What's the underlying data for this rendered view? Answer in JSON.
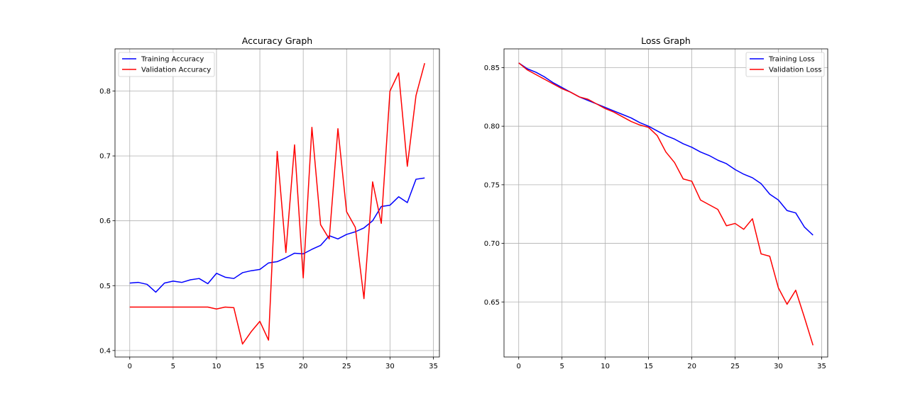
{
  "chart_data": [
    {
      "type": "line",
      "title": "Accuracy Graph",
      "xlabel": "",
      "ylabel": "",
      "xlim": [
        -1.7,
        35.7
      ],
      "ylim": [
        0.39,
        0.865
      ],
      "xticks": [
        0,
        5,
        10,
        15,
        20,
        25,
        30,
        35
      ],
      "xtick_labels": [
        "0",
        "5",
        "10",
        "15",
        "20",
        "25",
        "30",
        "35"
      ],
      "yticks": [
        0.4,
        0.5,
        0.6,
        0.7,
        0.8
      ],
      "ytick_labels": [
        "0.4",
        "0.5",
        "0.6",
        "0.7",
        "0.8"
      ],
      "grid": true,
      "legend_position": "upper-left",
      "x": [
        0,
        1,
        2,
        3,
        4,
        5,
        6,
        7,
        8,
        9,
        10,
        11,
        12,
        13,
        14,
        15,
        16,
        17,
        18,
        19,
        20,
        21,
        22,
        23,
        24,
        25,
        26,
        27,
        28,
        29,
        30,
        31,
        32,
        33,
        34
      ],
      "series": [
        {
          "name": "Training Accuracy",
          "color": "#0000ff",
          "values": [
            0.504,
            0.505,
            0.502,
            0.49,
            0.504,
            0.507,
            0.505,
            0.509,
            0.511,
            0.503,
            0.519,
            0.513,
            0.511,
            0.52,
            0.523,
            0.525,
            0.535,
            0.537,
            0.543,
            0.55,
            0.549,
            0.556,
            0.562,
            0.577,
            0.572,
            0.579,
            0.583,
            0.589,
            0.6,
            0.622,
            0.624,
            0.637,
            0.628,
            0.664,
            0.666
          ]
        },
        {
          "name": "Validation Accuracy",
          "color": "#ff0000",
          "values": [
            0.467,
            0.467,
            0.467,
            0.467,
            0.467,
            0.467,
            0.467,
            0.467,
            0.467,
            0.467,
            0.464,
            0.467,
            0.466,
            0.41,
            0.429,
            0.445,
            0.416,
            0.707,
            0.551,
            0.717,
            0.512,
            0.744,
            0.594,
            0.572,
            0.742,
            0.614,
            0.59,
            0.48,
            0.66,
            0.596,
            0.8,
            0.828,
            0.684,
            0.793,
            0.843
          ]
        }
      ]
    },
    {
      "type": "line",
      "title": "Loss Graph",
      "xlabel": "",
      "ylabel": "",
      "xlim": [
        -1.7,
        35.7
      ],
      "ylim": [
        0.603,
        0.866
      ],
      "xticks": [
        0,
        5,
        10,
        15,
        20,
        25,
        30,
        35
      ],
      "xtick_labels": [
        "0",
        "5",
        "10",
        "15",
        "20",
        "25",
        "30",
        "35"
      ],
      "yticks": [
        0.65,
        0.7,
        0.75,
        0.8,
        0.85
      ],
      "ytick_labels": [
        "0.65",
        "0.70",
        "0.75",
        "0.80",
        "0.85"
      ],
      "grid": true,
      "legend_position": "upper-right",
      "x": [
        0,
        1,
        2,
        3,
        4,
        5,
        6,
        7,
        8,
        9,
        10,
        11,
        12,
        13,
        14,
        15,
        16,
        17,
        18,
        19,
        20,
        21,
        22,
        23,
        24,
        25,
        26,
        27,
        28,
        29,
        30,
        31,
        32,
        33,
        34
      ],
      "series": [
        {
          "name": "Training Loss",
          "color": "#0000ff",
          "values": [
            0.854,
            0.849,
            0.846,
            0.842,
            0.837,
            0.833,
            0.829,
            0.825,
            0.822,
            0.819,
            0.816,
            0.813,
            0.81,
            0.807,
            0.803,
            0.8,
            0.796,
            0.792,
            0.789,
            0.785,
            0.782,
            0.778,
            0.775,
            0.771,
            0.768,
            0.763,
            0.759,
            0.756,
            0.751,
            0.742,
            0.737,
            0.728,
            0.726,
            0.714,
            0.707
          ]
        },
        {
          "name": "Validation Loss",
          "color": "#ff0000",
          "values": [
            0.854,
            0.848,
            0.844,
            0.84,
            0.836,
            0.832,
            0.829,
            0.825,
            0.823,
            0.819,
            0.815,
            0.812,
            0.808,
            0.804,
            0.801,
            0.799,
            0.792,
            0.778,
            0.769,
            0.755,
            0.753,
            0.737,
            0.733,
            0.729,
            0.715,
            0.717,
            0.712,
            0.721,
            0.691,
            0.689,
            0.662,
            0.648,
            0.66,
            0.637,
            0.613
          ]
        }
      ]
    }
  ]
}
